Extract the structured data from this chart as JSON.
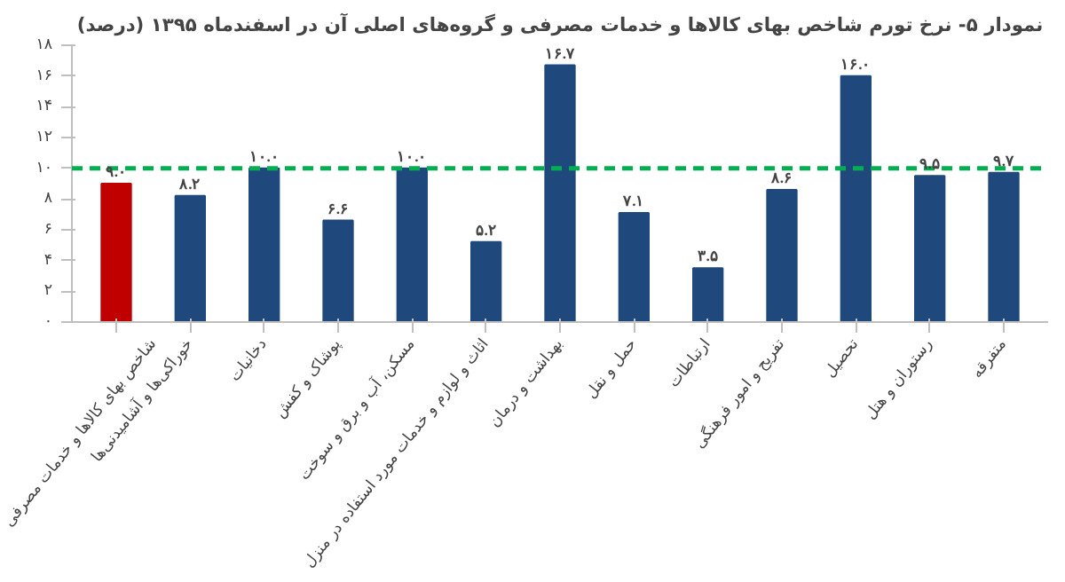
{
  "chart_data": {
    "type": "bar",
    "title": "نمودار ۵- نرخ تورم شاخص بهای کالاها و خدمات مصرفی و گروه‌های اصلی آن در اسفندماه ۱۳۹۵ (درصد)",
    "categories": [
      "شاخص بهای کالاها و خدمات مصرفی",
      "خوراکی‌ها و آشامیدنی‌ها",
      "دخانیات",
      "پوشاک و کفش",
      "مسکن، آب و برق و سوخت",
      "اثاث و لوازم و خدمات مورد استفاده در منزل",
      "بهداشت و درمان",
      "حمل و نقل",
      "ارتباطات",
      "تفریح و امور فرهنگی",
      "تحصیل",
      "رستوران و هتل",
      "متفرقه"
    ],
    "values": [
      9.0,
      8.2,
      10.0,
      6.6,
      10.0,
      5.2,
      16.7,
      7.1,
      3.5,
      8.6,
      16.0,
      9.5,
      9.7
    ],
    "value_labels": [
      "۹.۰",
      "۸.۲",
      "۱۰.۰",
      "۶.۶",
      "۱۰.۰",
      "۵.۲",
      "۱۶.۷",
      "۷.۱",
      "۳.۵",
      "۸.۶",
      "۱۶.۰",
      "۹.۵",
      "۹.۷"
    ],
    "colors": [
      "#c00000",
      "#1f497d",
      "#1f497d",
      "#1f497d",
      "#1f497d",
      "#1f497d",
      "#1f497d",
      "#1f497d",
      "#1f497d",
      "#1f497d",
      "#1f497d",
      "#1f497d",
      "#1f497d"
    ],
    "ylim": [
      0,
      18
    ],
    "yticks": [
      {
        "value": 0,
        "label": "۰"
      },
      {
        "value": 2,
        "label": "۲"
      },
      {
        "value": 4,
        "label": "۴"
      },
      {
        "value": 6,
        "label": "۶"
      },
      {
        "value": 8,
        "label": "۸"
      },
      {
        "value": 10,
        "label": "۱۰"
      },
      {
        "value": 12,
        "label": "۱۲"
      },
      {
        "value": 14,
        "label": "۱۴"
      },
      {
        "value": 16,
        "label": "۱۶"
      },
      {
        "value": 18,
        "label": "۱۸"
      }
    ],
    "ref_lines": [
      {
        "axis": "y",
        "value": 10,
        "label": null,
        "color": "#00b050",
        "line_style": "dashed"
      }
    ],
    "grid": false
  }
}
